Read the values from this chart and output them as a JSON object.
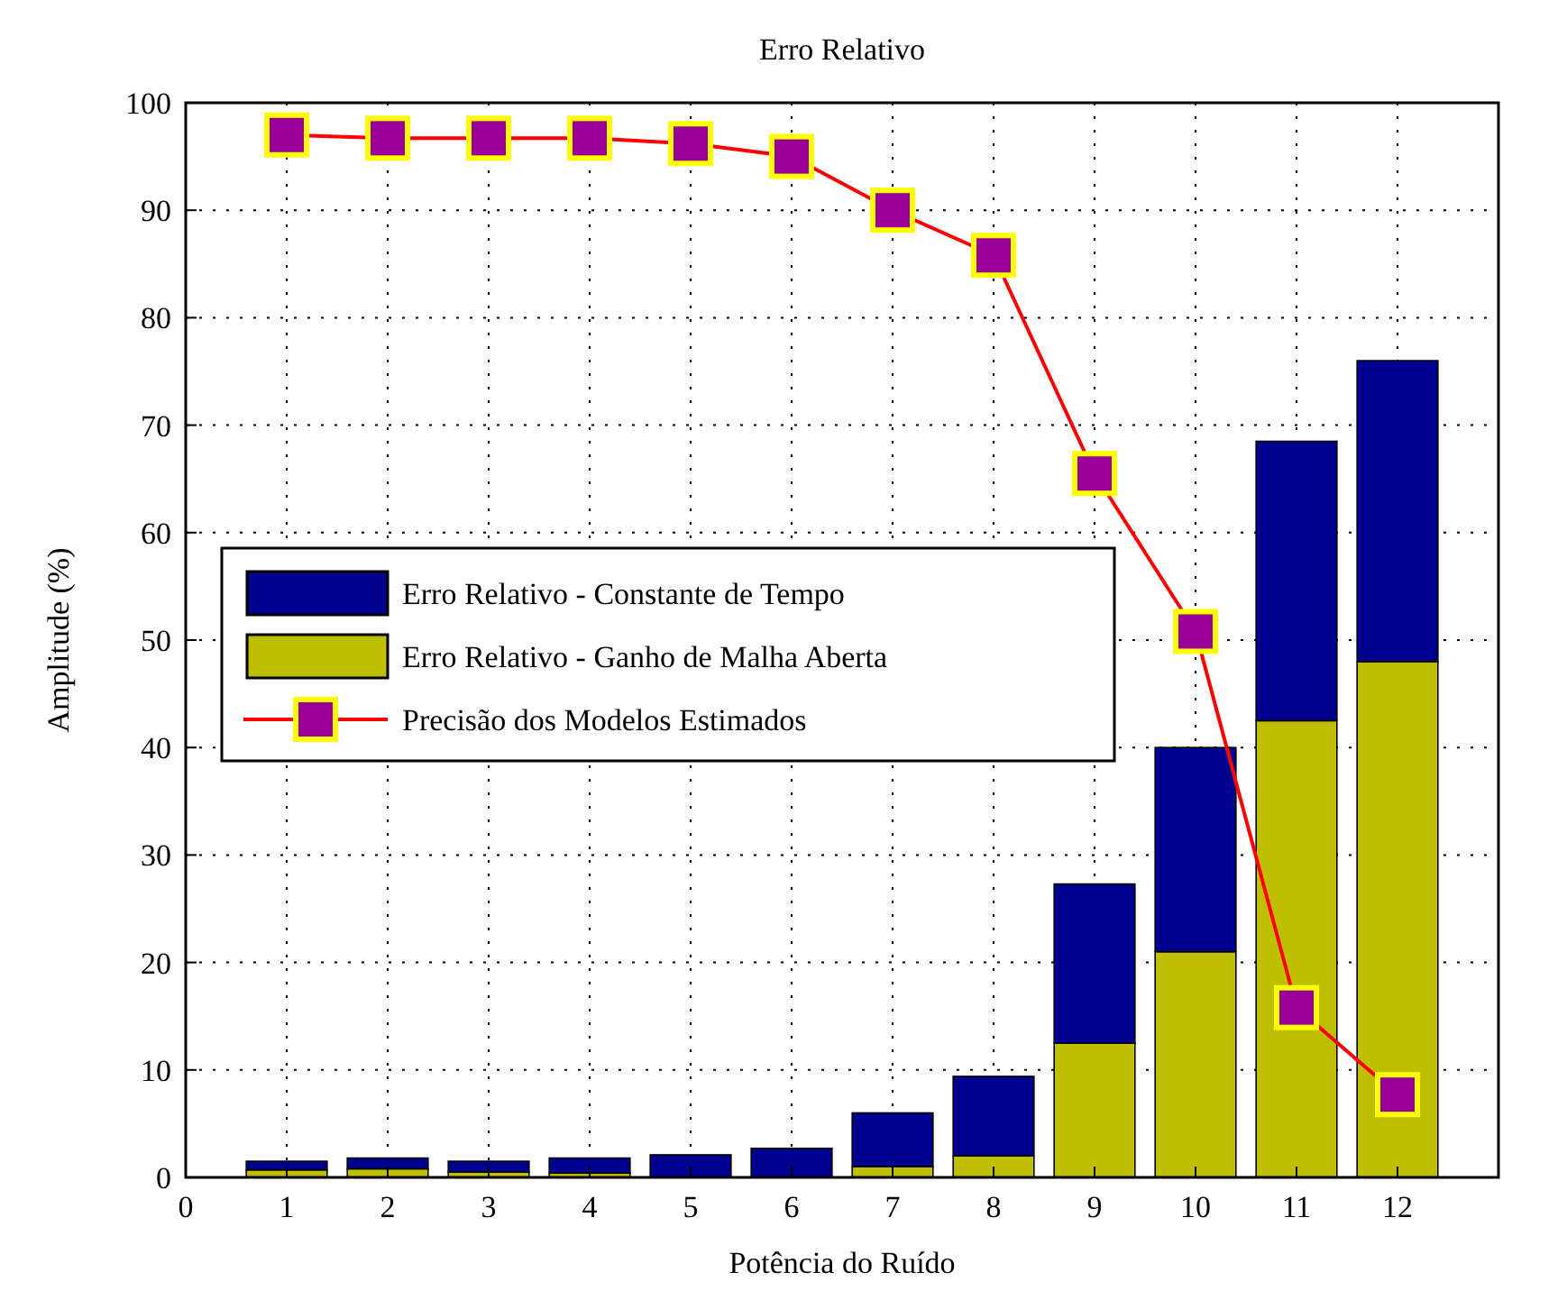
{
  "chart_data": {
    "type": "bar",
    "title": "Erro Relativo",
    "xlabel": "Potência do Ruído",
    "ylabel": "Amplitude (%)",
    "x": [
      1,
      2,
      3,
      4,
      5,
      6,
      7,
      8,
      9,
      10,
      11,
      12
    ],
    "stacked": true,
    "series": [
      {
        "name": "Erro Relativo - Ganho de Malha Aberta",
        "color": "#bfbf00",
        "values": [
          0.7,
          0.8,
          0.5,
          0.4,
          null,
          null,
          1,
          2,
          12.5,
          21,
          42.5,
          48
        ]
      },
      {
        "name": "Erro Relativo - Constante de Tempo",
        "color": "#000090",
        "values": [
          0.8,
          1,
          1,
          1.4,
          2.1,
          2.7,
          5,
          7.4,
          14.8,
          19,
          26,
          28
        ]
      },
      {
        "name": "Precisão dos Modelos Estimados",
        "type": "line",
        "color": "#ff0000",
        "marker": "square",
        "values": [
          97,
          96.7,
          96.7,
          96.7,
          96.2,
          95,
          90,
          85.8,
          65.5,
          50.8,
          15.8,
          7.7
        ]
      }
    ],
    "xlim": [
      0,
      13
    ],
    "xticks": [
      0,
      1,
      2,
      3,
      4,
      5,
      6,
      7,
      8,
      9,
      10,
      11,
      12
    ],
    "ylim": [
      0,
      100
    ],
    "yticks": [
      0,
      10,
      20,
      30,
      40,
      50,
      60,
      70,
      80,
      90,
      100
    ],
    "grid": true,
    "legend": "left"
  }
}
